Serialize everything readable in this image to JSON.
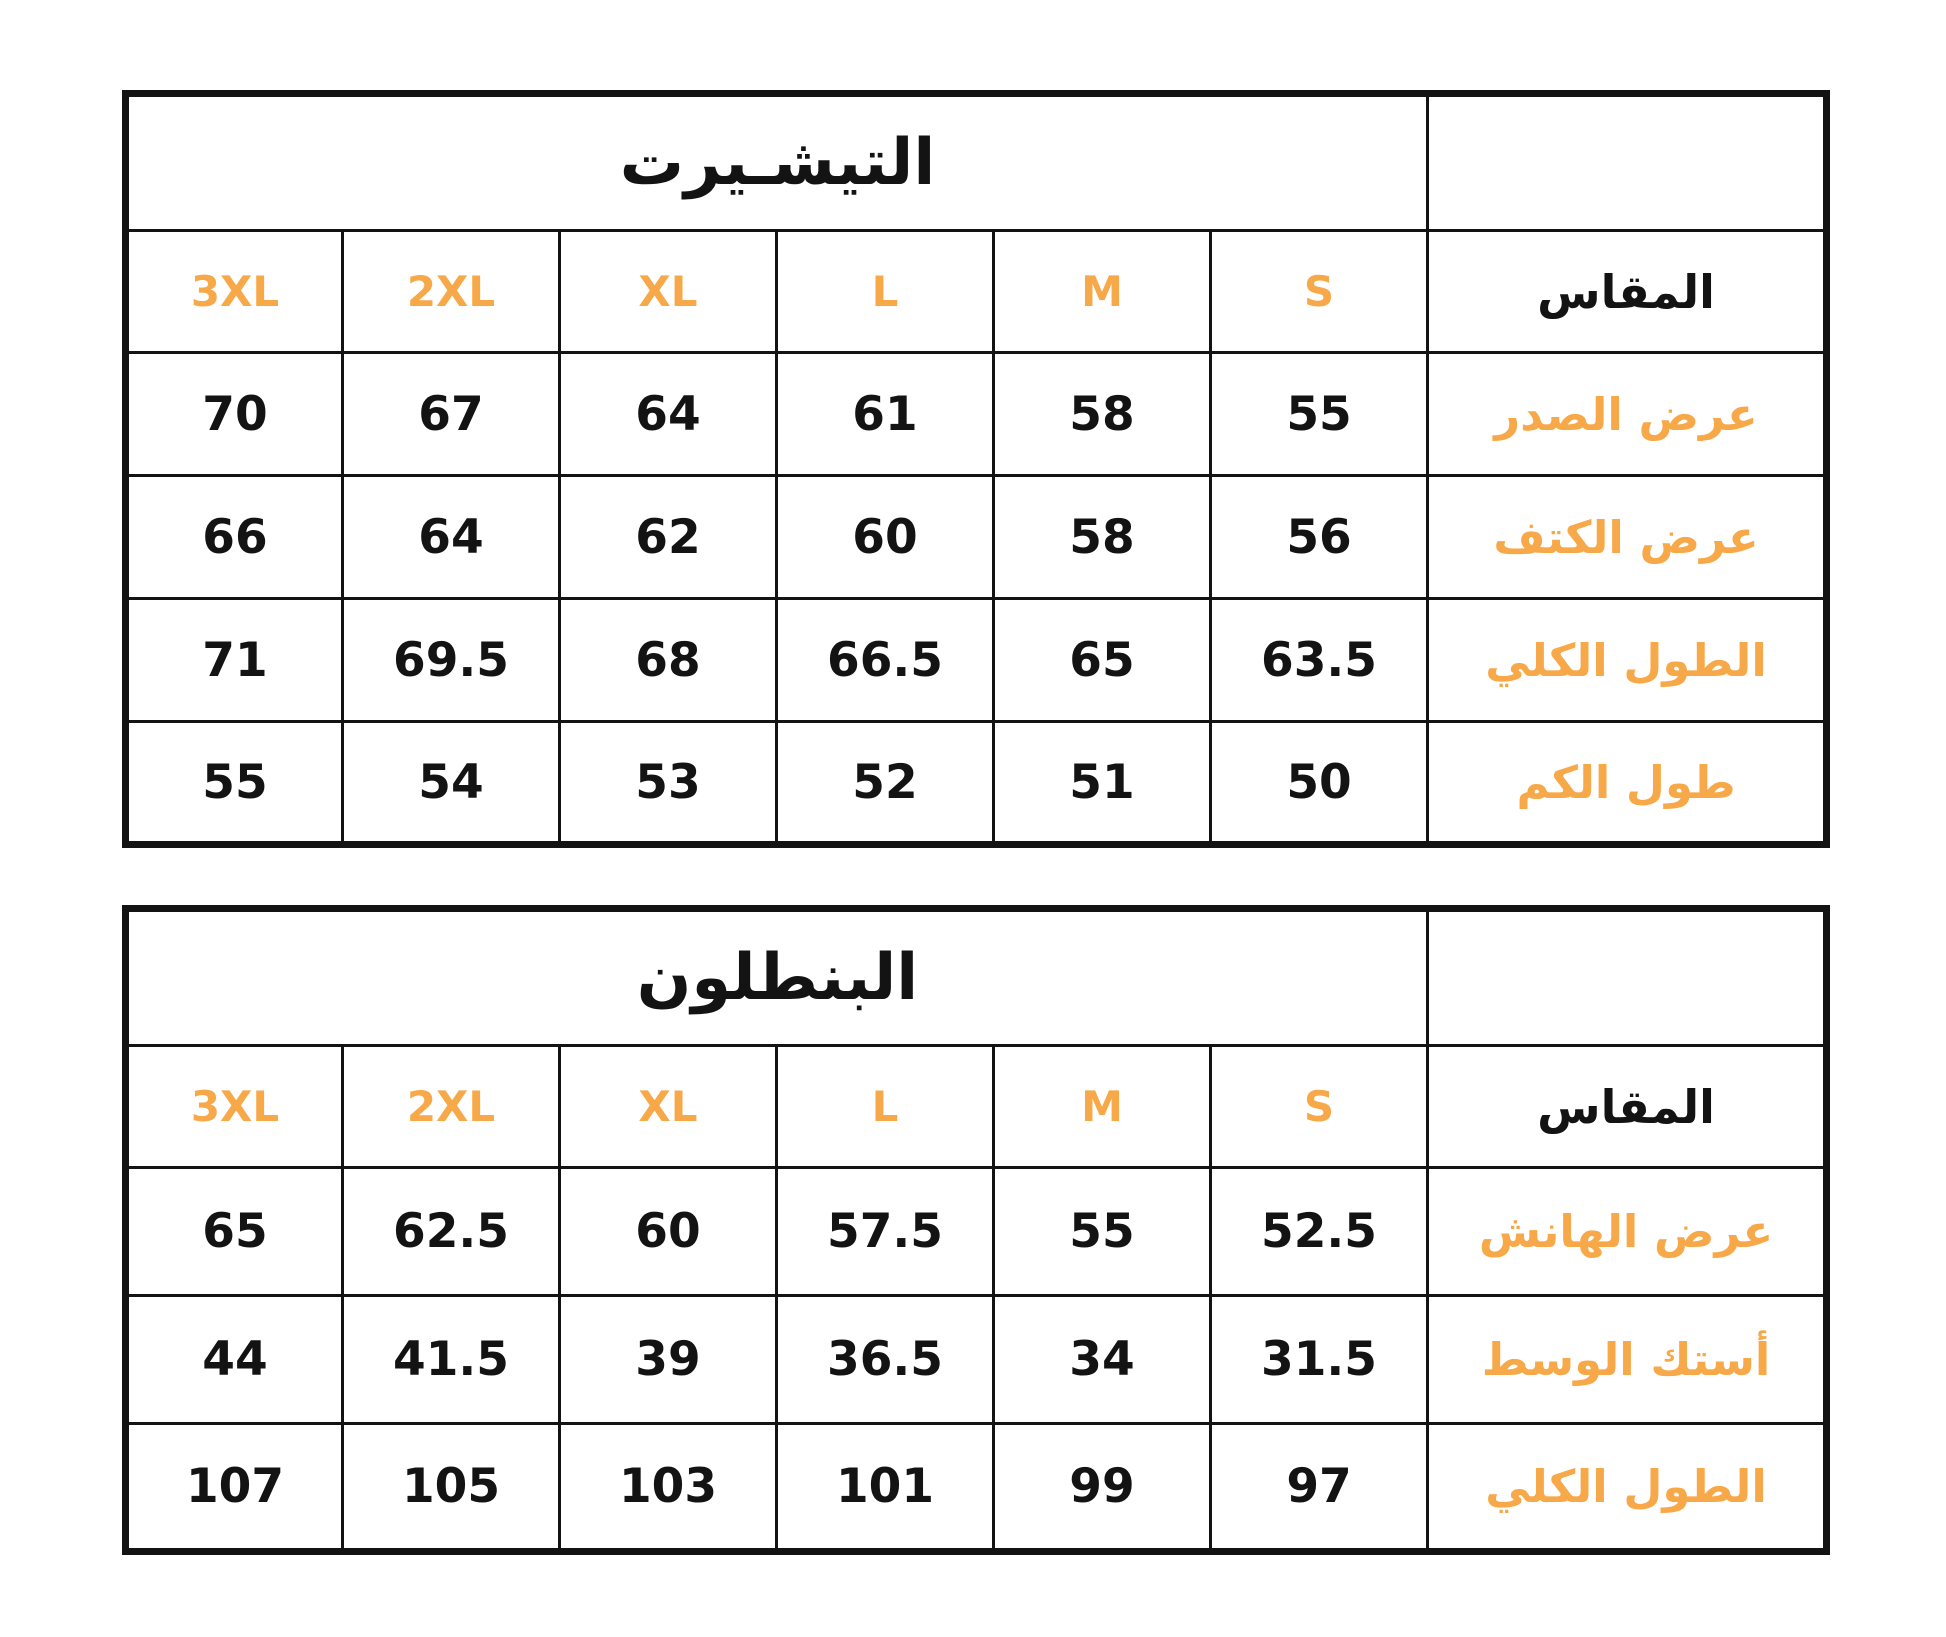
{
  "colors": {
    "accent_orange": "#F7A848",
    "text_black": "#131313",
    "border": "#131313",
    "background": "#FFFFFF"
  },
  "chart_data": [
    {
      "type": "table",
      "title": "التيشـيرت",
      "size_label": "المقاس",
      "sizes": [
        "3XL",
        "2XL",
        "XL",
        "L",
        "M",
        "S"
      ],
      "rows": [
        {
          "label": "عرض الصدر",
          "values": [
            "70",
            "67",
            "64",
            "61",
            "58",
            "55"
          ]
        },
        {
          "label": "عرض الكتف",
          "values": [
            "66",
            "64",
            "62",
            "60",
            "58",
            "56"
          ]
        },
        {
          "label": "الطول الكلي",
          "values": [
            "71",
            "69.5",
            "68",
            "66.5",
            "65",
            "63.5"
          ]
        },
        {
          "label": "طول الكم",
          "values": [
            "55",
            "54",
            "53",
            "52",
            "51",
            "50"
          ]
        }
      ]
    },
    {
      "type": "table",
      "title": "البنطلون",
      "size_label": "المقاس",
      "sizes": [
        "3XL",
        "2XL",
        "XL",
        "L",
        "M",
        "S"
      ],
      "rows": [
        {
          "label": "عرض الهانش",
          "values": [
            "65",
            "62.5",
            "60",
            "57.5",
            "55",
            "52.5"
          ]
        },
        {
          "label": "أستك الوسط",
          "values": [
            "44",
            "41.5",
            "39",
            "36.5",
            "34",
            "31.5"
          ]
        },
        {
          "label": "الطول الكلي",
          "values": [
            "107",
            "105",
            "103",
            "101",
            "99",
            "97"
          ]
        }
      ]
    }
  ]
}
